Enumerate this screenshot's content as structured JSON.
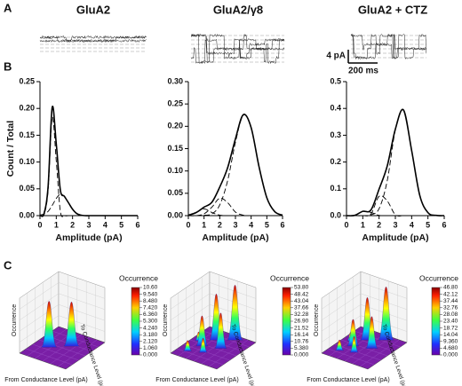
{
  "panel_labels": [
    "A",
    "B",
    "C"
  ],
  "trace_titles": [
    "GluA2",
    "GluA2/γ8",
    "GluA2 + CTZ"
  ],
  "scale_bar": {
    "current": "4 pA",
    "time": "200 ms"
  },
  "chart_data": [
    {
      "type": "line",
      "ylabel": "Count / Total",
      "xlabel": "Amplitude (pA)",
      "x": [
        0,
        0.25,
        0.5,
        0.75,
        1,
        1.25,
        1.5,
        1.75,
        2,
        2.25,
        2.5,
        2.75,
        3,
        3.25,
        3.5,
        3.75,
        4,
        4.25,
        4.5,
        4.75,
        5,
        5.25,
        5.5,
        5.75,
        6
      ],
      "series": [
        {
          "color": "#000000",
          "values": [
            0.001,
            0.004,
            0.055,
            0.202,
            0.134,
            0.048,
            0.036,
            0.024,
            0.012,
            0.004,
            0.001,
            0,
            0,
            0,
            0,
            0,
            0,
            0,
            0,
            0,
            0,
            0,
            0,
            0,
            0
          ]
        },
        {
          "color": "#000000",
          "dashed": true,
          "values": [
            0,
            0.002,
            0.047,
            0.183,
            0.102,
            0.008,
            0,
            0,
            0,
            0,
            0,
            0,
            0,
            0,
            0,
            0,
            0,
            0,
            0,
            0,
            0,
            0,
            0,
            0,
            0
          ]
        },
        {
          "color": "#000000",
          "dashed": true,
          "values": [
            0.001,
            0.003,
            0.008,
            0.019,
            0.032,
            0.04,
            0.036,
            0.024,
            0.012,
            0.004,
            0.001,
            0,
            0,
            0,
            0,
            0,
            0,
            0,
            0,
            0,
            0,
            0,
            0,
            0,
            0
          ]
        }
      ],
      "xlim": [
        0,
        6
      ],
      "xticks": [
        0,
        1,
        2,
        3,
        4,
        5,
        6
      ],
      "ylim": [
        0,
        0.25
      ],
      "yticks": [
        {
          "value": 0,
          "label": "0.00"
        },
        {
          "value": 0.05,
          "label": "0.05"
        },
        {
          "value": 0.1,
          "label": "0.10"
        },
        {
          "value": 0.15,
          "label": "0.15"
        },
        {
          "value": 0.2,
          "label": "0.20"
        },
        {
          "value": 0.25,
          "label": "0.25"
        }
      ]
    },
    {
      "type": "line",
      "xlabel": "Amplitude (pA)",
      "x": [
        0,
        0.5,
        1,
        1.5,
        2,
        2.5,
        3,
        3.5,
        4,
        4.5,
        5,
        5.5,
        6
      ],
      "series": [
        {
          "color": "#000000",
          "values": [
            0.001,
            0.007,
            0.019,
            0.03,
            0.064,
            0.107,
            0.172,
            0.226,
            0.197,
            0.11,
            0.04,
            0.009,
            0.001
          ]
        },
        {
          "color": "#000000",
          "dashed": true,
          "values": [
            0,
            0,
            0.001,
            0.004,
            0.024,
            0.078,
            0.164,
            0.225,
            0.197,
            0.11,
            0.04,
            0.009,
            0.001
          ]
        },
        {
          "color": "#000000",
          "dashed": true,
          "values": [
            0,
            0,
            0.004,
            0.019,
            0.039,
            0.029,
            0.008,
            0.001,
            0,
            0,
            0,
            0,
            0
          ]
        },
        {
          "color": "#000000",
          "dashed": true,
          "values": [
            0.001,
            0.007,
            0.015,
            0.007,
            0.001,
            0,
            0,
            0,
            0,
            0,
            0,
            0,
            0
          ]
        }
      ],
      "xlim": [
        0,
        6
      ],
      "xticks": [
        0,
        1,
        2,
        3,
        4,
        5,
        6
      ],
      "ylim": [
        0,
        0.3
      ],
      "yticks": [
        {
          "value": 0,
          "label": "0.00"
        },
        {
          "value": 0.05,
          "label": "0.05"
        },
        {
          "value": 0.1,
          "label": "0.10"
        },
        {
          "value": 0.15,
          "label": "0.15"
        },
        {
          "value": 0.2,
          "label": "0.20"
        },
        {
          "value": 0.25,
          "label": "0.25"
        },
        {
          "value": 0.3,
          "label": "0.30"
        }
      ]
    },
    {
      "type": "line",
      "xlabel": "Amplitude (pA)",
      "x": [
        0,
        0.5,
        1,
        1.5,
        2,
        2.5,
        3,
        3.5,
        4,
        4.5,
        5,
        5.5,
        6
      ],
      "series": [
        {
          "color": "#000000",
          "values": [
            0,
            0.001,
            0.016,
            0.021,
            0.099,
            0.185,
            0.323,
            0.394,
            0.243,
            0.075,
            0.011,
            0.001,
            0
          ]
        },
        {
          "color": "#000000",
          "dashed": true,
          "values": [
            0,
            0,
            0,
            0.003,
            0.026,
            0.13,
            0.32,
            0.394,
            0.243,
            0.075,
            0.011,
            0.001,
            0
          ]
        },
        {
          "color": "#000000",
          "dashed": true,
          "values": [
            0,
            0,
            0,
            0.006,
            0.072,
            0.055,
            0.003,
            0,
            0,
            0,
            0,
            0,
            0
          ]
        },
        {
          "color": "#000000",
          "dashed": true,
          "values": [
            0,
            0.001,
            0.016,
            0.012,
            0.001,
            0,
            0,
            0,
            0,
            0,
            0,
            0,
            0
          ]
        }
      ],
      "xlim": [
        0,
        6
      ],
      "xticks": [
        0,
        1,
        2,
        3,
        4,
        5,
        6
      ],
      "ylim": [
        0,
        0.5
      ],
      "yticks": [
        {
          "value": 0,
          "label": "0.0"
        },
        {
          "value": 0.1,
          "label": "0.1"
        },
        {
          "value": 0.2,
          "label": "0.2"
        },
        {
          "value": 0.3,
          "label": "0.3"
        },
        {
          "value": 0.4,
          "label": "0.4"
        },
        {
          "value": 0.5,
          "label": "0.5"
        }
      ]
    },
    {
      "type": "surface",
      "colorbar_title": "Occurrence",
      "zlabel": "Occurrence",
      "ylabel": "To Conductance Level (pA)",
      "xlabel": "From Conductance Level (pA)",
      "clim": [
        0,
        10.6
      ],
      "colorbar_ticks": [
        {
          "value": 10.6,
          "label": "10.60"
        },
        {
          "value": 9.54,
          "label": "9.540"
        },
        {
          "value": 8.48,
          "label": "8.480"
        },
        {
          "value": 7.42,
          "label": "7.420"
        },
        {
          "value": 6.36,
          "label": "6.360"
        },
        {
          "value": 5.3,
          "label": "5.300"
        },
        {
          "value": 4.24,
          "label": "4.240"
        },
        {
          "value": 3.18,
          "label": "3.180"
        },
        {
          "value": 2.12,
          "label": "2.120"
        },
        {
          "value": 1.06,
          "label": "1.060"
        },
        {
          "value": 0,
          "label": "0.000"
        }
      ]
    },
    {
      "type": "surface",
      "colorbar_title": "Occurrence",
      "zlabel": "Occurrence",
      "ylabel": "To Conductance Level (pA)",
      "xlabel": "From Conductance Level (pA)",
      "clim": [
        0,
        53.8
      ],
      "colorbar_ticks": [
        {
          "value": 53.8,
          "label": "53.80"
        },
        {
          "value": 48.42,
          "label": "48.42"
        },
        {
          "value": 43.04,
          "label": "43.04"
        },
        {
          "value": 37.66,
          "label": "37.66"
        },
        {
          "value": 32.28,
          "label": "32.28"
        },
        {
          "value": 26.9,
          "label": "26.90"
        },
        {
          "value": 21.52,
          "label": "21.52"
        },
        {
          "value": 16.14,
          "label": "16.14"
        },
        {
          "value": 10.76,
          "label": "10.76"
        },
        {
          "value": 5.38,
          "label": "5.380"
        },
        {
          "value": 0,
          "label": "0.000"
        }
      ]
    },
    {
      "type": "surface",
      "colorbar_title": "Occurrence",
      "zlabel": "Occurrence",
      "ylabel": "To Conductance Level (pA)",
      "xlabel": "From Conductance Level (pA)",
      "clim": [
        0,
        46.8
      ],
      "colorbar_ticks": [
        {
          "value": 46.8,
          "label": "46.80"
        },
        {
          "value": 42.12,
          "label": "42.12"
        },
        {
          "value": 37.44,
          "label": "37.44"
        },
        {
          "value": 32.76,
          "label": "32.76"
        },
        {
          "value": 28.08,
          "label": "28.08"
        },
        {
          "value": 23.4,
          "label": "23.40"
        },
        {
          "value": 18.72,
          "label": "18.72"
        },
        {
          "value": 14.04,
          "label": "14.04"
        },
        {
          "value": 9.36,
          "label": "9.360"
        },
        {
          "value": 4.68,
          "label": "4.680"
        },
        {
          "value": 0,
          "label": "0.000"
        }
      ]
    }
  ]
}
